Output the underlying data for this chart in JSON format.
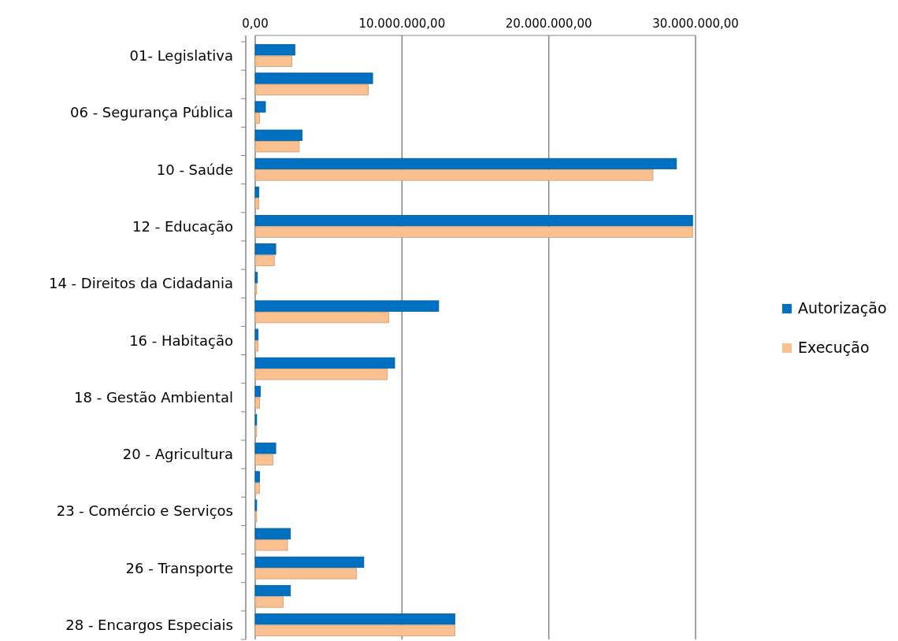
{
  "chart_data": {
    "type": "bar",
    "orientation": "horizontal",
    "categories": [
      "01- Legislativa",
      null,
      "06 - Segurança Pública",
      null,
      "10 - Saúde ",
      null,
      "12 - Educação",
      null,
      "14 - Direitos da Cidadania",
      null,
      "16 - Habitação",
      null,
      "18 - Gestão Ambiental",
      null,
      "20 - Agricultura",
      null,
      "23 - Comércio e Serviços",
      null,
      "26 - Transporte",
      null,
      "28 - Encargos Especiais"
    ],
    "series": [
      {
        "name": "Autorização",
        "color": "#0070c0",
        "values": [
          2700000,
          8000000,
          700000,
          3200000,
          28700000,
          250000,
          29800000,
          1400000,
          150000,
          12500000,
          200000,
          9500000,
          350000,
          100000,
          1400000,
          300000,
          100000,
          2400000,
          7400000,
          2400000,
          13600000
        ]
      },
      {
        "name": "Execução",
        "color": "#fac090",
        "values": [
          2500000,
          7700000,
          300000,
          3000000,
          27100000,
          250000,
          29800000,
          1300000,
          100000,
          9100000,
          200000,
          9000000,
          300000,
          100000,
          1200000,
          300000,
          100000,
          2200000,
          6900000,
          1900000,
          13600000
        ]
      }
    ],
    "xlim": [
      0,
      30000000
    ],
    "xticks": [
      {
        "value": 0,
        "label": "0,00"
      },
      {
        "value": 10000000,
        "label": "10.000.000,00"
      },
      {
        "value": 20000000,
        "label": "20.000.000,00"
      },
      {
        "value": 30000000,
        "label": "30.000.000,00"
      }
    ],
    "grid": "x",
    "legend": "right"
  }
}
